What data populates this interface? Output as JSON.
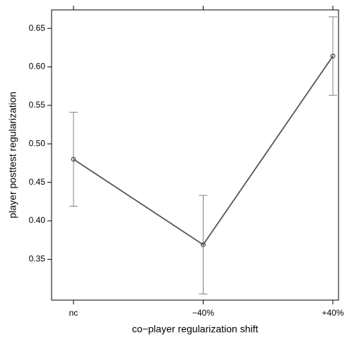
{
  "chart_data": {
    "type": "line",
    "x_label": "co−player regularization shift",
    "y_label": "player posttest regularization",
    "categories": [
      "nc",
      "−40%",
      "+40%"
    ],
    "values": [
      0.48,
      0.369,
      0.614
    ],
    "errors": [
      0.061,
      0.064,
      0.051
    ],
    "color": "#555555",
    "error_color": "#808080",
    "ylim": [
      0.297,
      0.674
    ],
    "yticks": [
      0.35,
      {
        "value": 0.4,
        "label": "0.40"
      },
      0.45,
      {
        "value": 0.5,
        "label": "0.50"
      },
      0.55,
      {
        "value": 0.6,
        "label": "0.60"
      },
      0.65
    ]
  }
}
